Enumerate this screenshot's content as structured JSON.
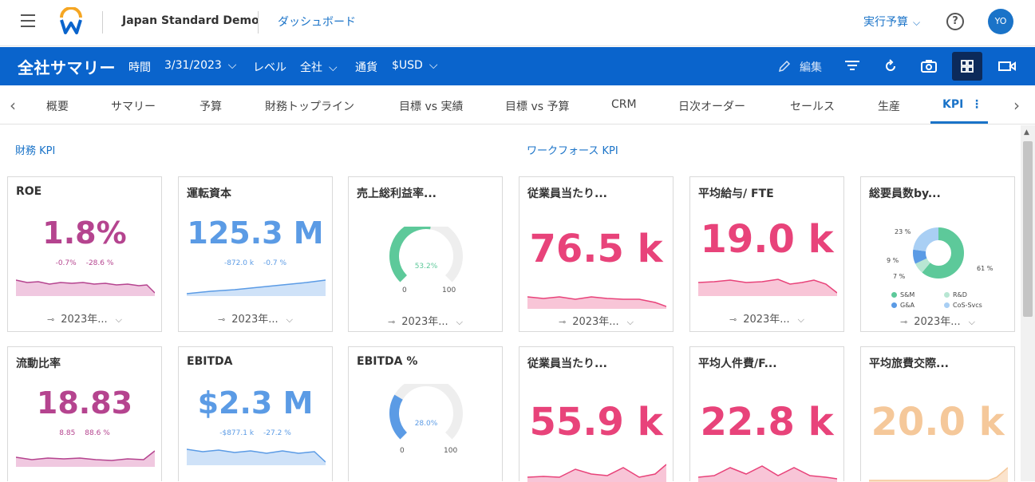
{
  "top": {
    "app_name": "Japan Standard Demo",
    "dashboard_link": "ダッシュボード",
    "budget_label": "実行予算",
    "help": "?",
    "avatar": "YO"
  },
  "header": {
    "title": "全社サマリー",
    "time_label": "時間",
    "time_value": "3/31/2023",
    "level_label": "レベル",
    "level_value": "全社",
    "currency_label": "通貨",
    "currency_value": "$USD",
    "edit_label": "編集"
  },
  "tabs": [
    "概要",
    "サマリー",
    "予算",
    "財務トップライン",
    "目標 vs 実績",
    "目標 vs 予算",
    "CRM",
    "日次オーダー",
    "セールス",
    "生産",
    "KPI"
  ],
  "sections": {
    "finance": "財務 KPI",
    "workforce": "ワークフォース KPI"
  },
  "cards": {
    "roe": {
      "title": "ROE",
      "value": "1.8%",
      "sub1": "-0.7%",
      "sub2": "-28.6 %",
      "footer": "2023年..."
    },
    "working_capital": {
      "title": "運転資本",
      "value": "125.3 M",
      "sub1": "-872.0 k",
      "sub2": "-0.7 %",
      "footer": "2023年..."
    },
    "gross_margin": {
      "title": "売上総利益率...",
      "gauge_value": "53.2%",
      "gauge_pct": 53.2,
      "min": "0",
      "max": "100",
      "footer": "2023年..."
    },
    "rev_per_emp": {
      "title": "従業員当たり...",
      "value": "76.5 k",
      "footer": "2023年..."
    },
    "avg_salary": {
      "title": "平均給与/ FTE",
      "value": "19.0 k",
      "footer": "2023年..."
    },
    "headcount": {
      "title": "総要員数by...",
      "labels": [
        "23 %",
        "9 %",
        "7 %",
        "61 %"
      ],
      "legend": [
        "S&M",
        "R&D",
        "G&A",
        "CoS-Svcs"
      ],
      "footer": "2023年..."
    },
    "current_ratio": {
      "title": "流動比率",
      "value": "18.83",
      "sub1": "8.85",
      "sub2": "88.6 %"
    },
    "ebitda": {
      "title": "EBITDA",
      "value": "$2.3 M",
      "sub1": "-$877.1 k",
      "sub2": "-27.2 %"
    },
    "ebitda_pct": {
      "title": "EBITDA %",
      "gauge_value": "28.0%",
      "gauge_pct": 28.0,
      "min": "0",
      "max": "100"
    },
    "rev_per_emp2": {
      "title": "従業員当たり...",
      "value": "55.9 k"
    },
    "avg_labor": {
      "title": "平均人件費/F...",
      "value": "22.8 k"
    },
    "avg_travel": {
      "title": "平均旅費交際...",
      "value": "20.0 k"
    }
  },
  "colors": {
    "brand": "#0a64cc",
    "purple": "#b5448f",
    "blue": "#5b9be5",
    "pink": "#e8437a",
    "peach": "#f5c89a",
    "green": "#5dc99a"
  }
}
